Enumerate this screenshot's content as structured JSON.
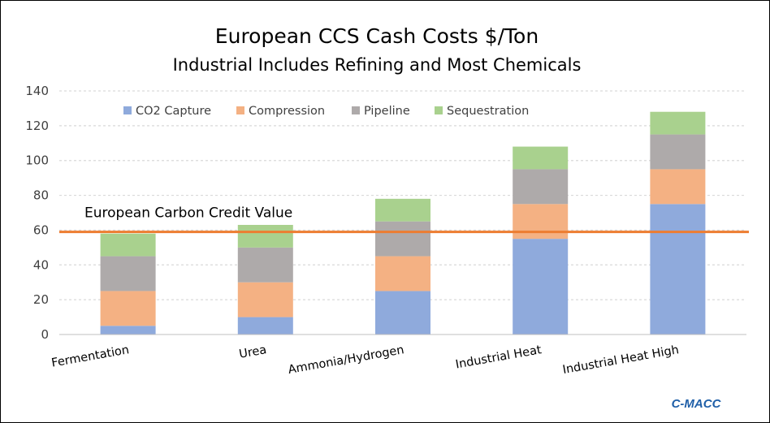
{
  "chart_data": {
    "type": "bar",
    "stacked": true,
    "title": "European CCS Cash Costs $/Ton",
    "subtitle": "Industrial Includes Refining and Most Chemicals",
    "xlabel": "",
    "ylabel": "",
    "ylim": [
      0,
      140
    ],
    "yticks": [
      "0",
      "20",
      "40",
      "60",
      "80",
      "100",
      "120",
      "140"
    ],
    "grid": true,
    "legend_position": "top",
    "categories": [
      "Fermentation",
      "Urea",
      "Ammonia/Hydrogen",
      "Industrial Heat",
      "Industrial Heat High"
    ],
    "series": [
      {
        "name": "CO2 Capture",
        "color": "#8faadc",
        "values": [
          5,
          10,
          25,
          55,
          75
        ]
      },
      {
        "name": "Compression",
        "color": "#f4b183",
        "values": [
          20,
          20,
          20,
          20,
          20
        ]
      },
      {
        "name": "Pipeline",
        "color": "#aeaaaa",
        "values": [
          20,
          20,
          20,
          20,
          20
        ]
      },
      {
        "name": "Sequestration",
        "color": "#a9d18e",
        "values": [
          13,
          13,
          13,
          13,
          13
        ]
      }
    ],
    "reference_line": {
      "label": "European Carbon Credit Value",
      "value": 59,
      "color": "#ed7d31"
    }
  },
  "source_label": "C-MACC"
}
